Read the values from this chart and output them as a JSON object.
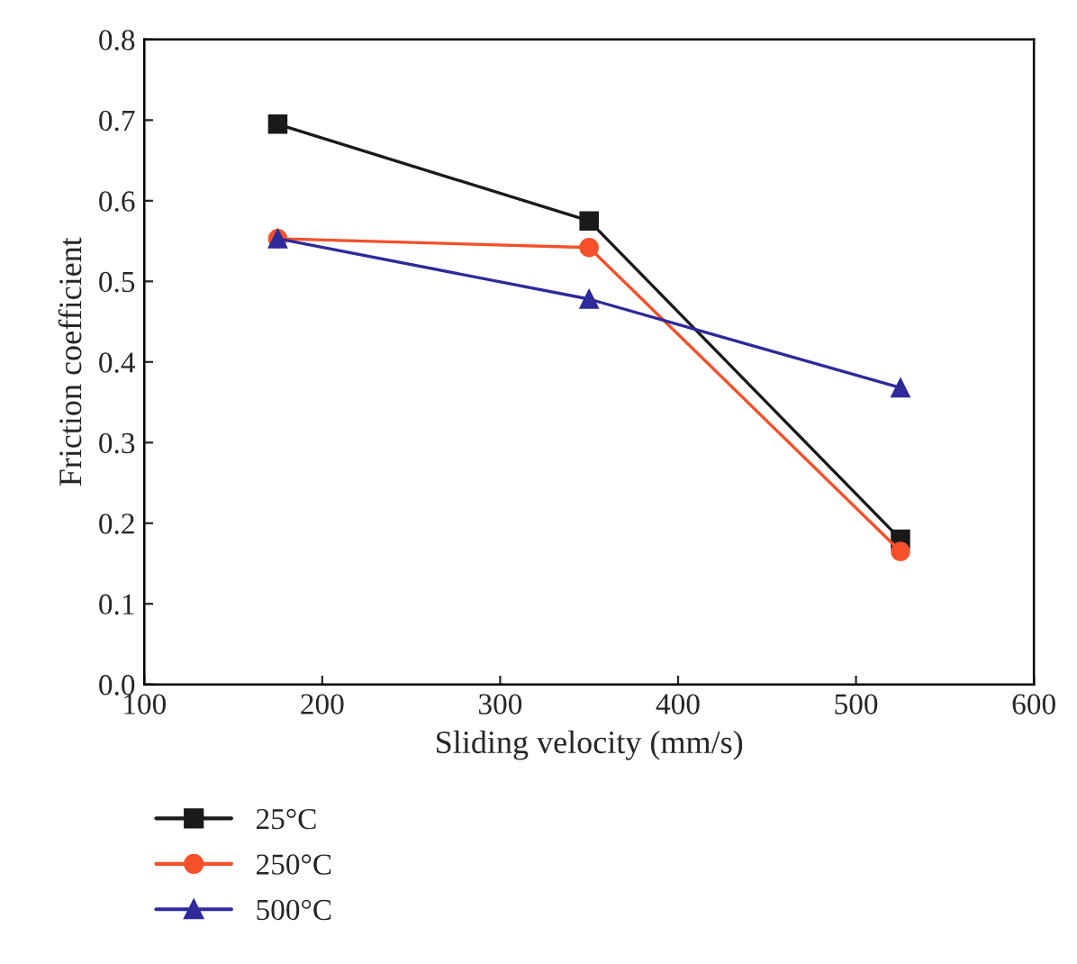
{
  "chart_data": {
    "type": "line",
    "xlabel": "Sliding velocity (mm/s)",
    "ylabel": "Friction coefficient",
    "x": [
      175,
      350,
      525
    ],
    "series": [
      {
        "name": "25°C",
        "color": "#1a1a1a",
        "marker": "square",
        "values": [
          0.695,
          0.575,
          0.18
        ]
      },
      {
        "name": "250°C",
        "color": "#f5502a",
        "marker": "circle",
        "values": [
          0.553,
          0.542,
          0.165
        ]
      },
      {
        "name": "500°C",
        "color": "#2e2a9a",
        "marker": "triangle",
        "values": [
          0.553,
          0.478,
          0.368
        ]
      }
    ],
    "xlim": [
      100,
      600
    ],
    "xticks": [
      100,
      200,
      300,
      400,
      500,
      600
    ],
    "ylim": [
      0,
      0.8
    ],
    "yticks": [
      {
        "value": 0,
        "label": "0.0"
      },
      0.1,
      0.2,
      0.3,
      0.4,
      0.5,
      0.6,
      0.7,
      0.8
    ],
    "legend": "bottom left",
    "grid": false
  }
}
